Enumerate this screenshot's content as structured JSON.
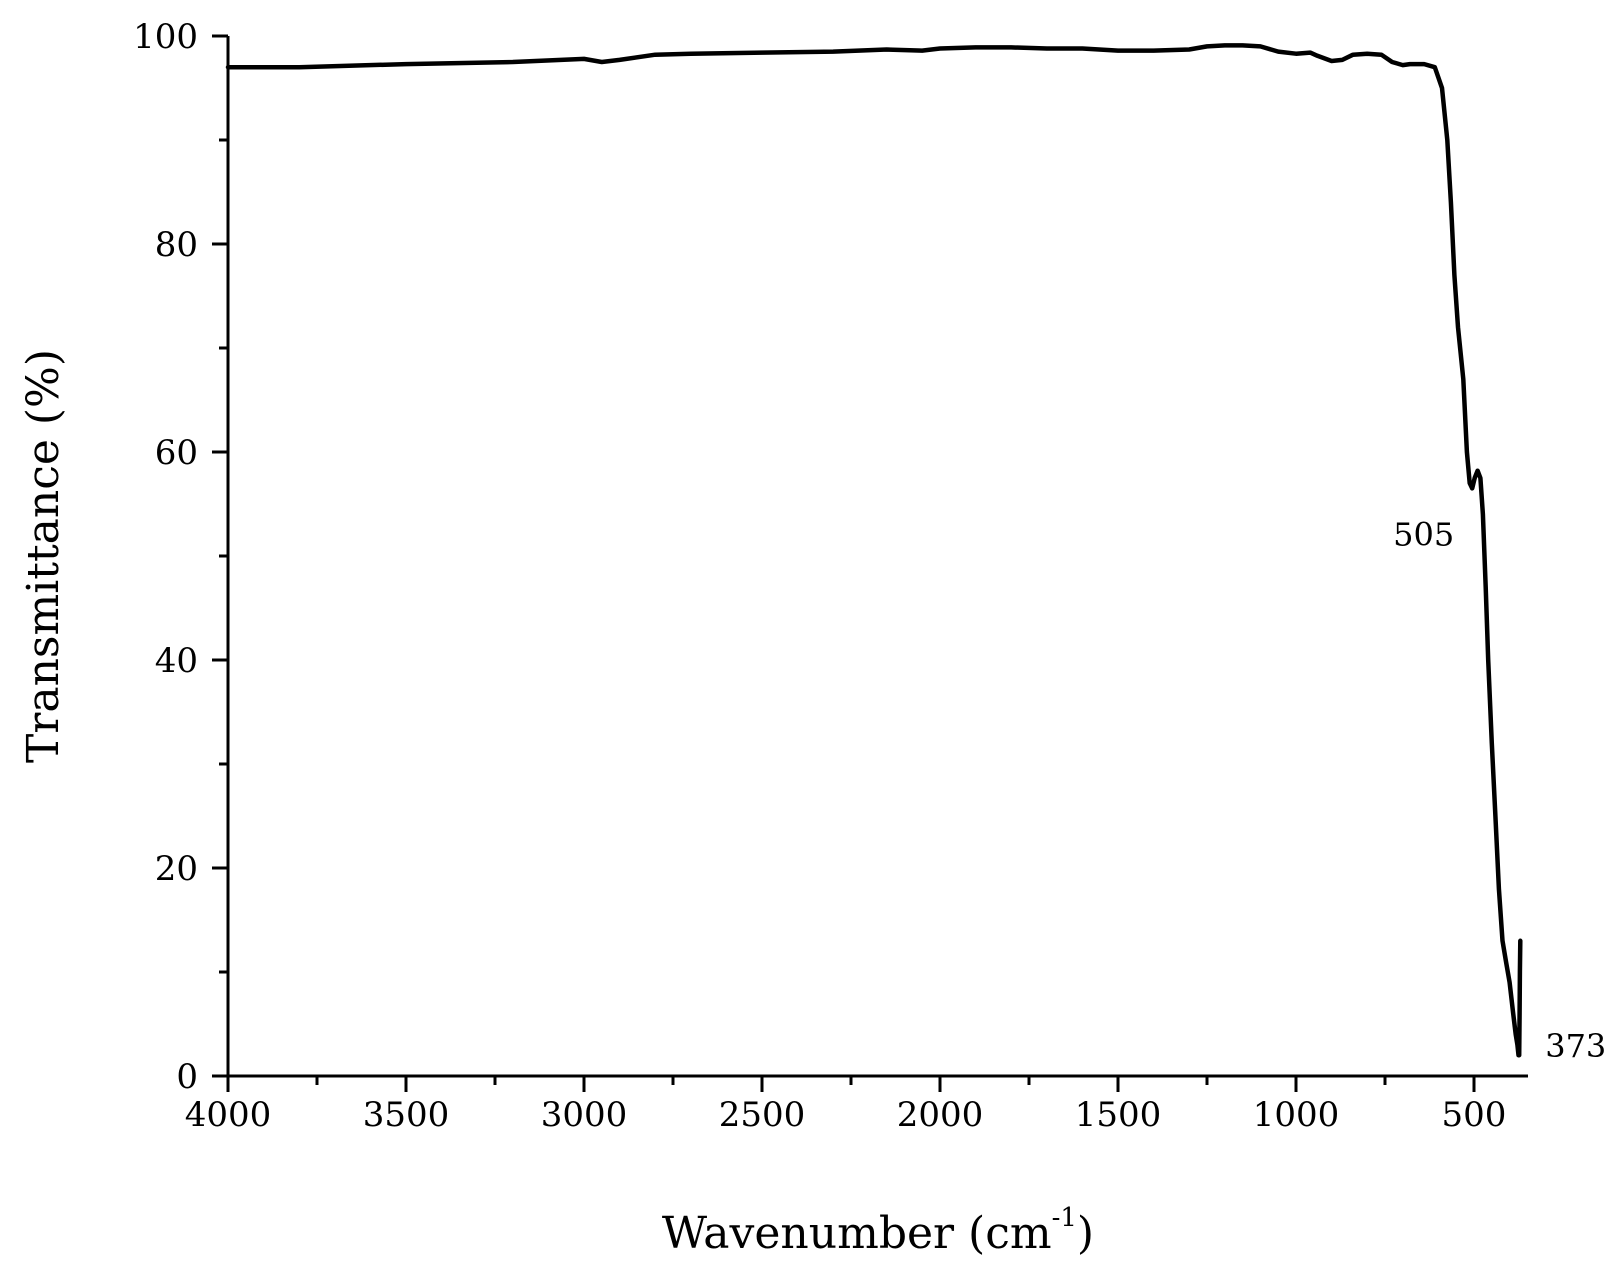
{
  "chart_data": {
    "type": "line",
    "title": "",
    "xlabel_main": "Wavenumber (cm",
    "xlabel_sup": "-1",
    "xlabel_close": ")",
    "ylabel": "Transmittance (%)",
    "xlim": [
      4000,
      350
    ],
    "ylim": [
      0,
      100
    ],
    "x_ticks": [
      4000,
      3500,
      3000,
      2500,
      2000,
      1500,
      1000,
      500
    ],
    "x_tick_labels": [
      "4000",
      "3500",
      "3000",
      "2500",
      "2000",
      "1500",
      "1000",
      "500"
    ],
    "x_minor_ticks": [
      3750,
      3250,
      2750,
      2250,
      1750,
      1250,
      750
    ],
    "y_ticks": [
      0,
      20,
      40,
      60,
      80,
      100
    ],
    "y_tick_labels": [
      "0",
      "20",
      "40",
      "60",
      "80",
      "100"
    ],
    "y_minor_ticks": [
      10,
      30,
      50,
      70,
      90
    ],
    "grid": false,
    "legend": "none",
    "line_color": "#000000",
    "annotations": [
      {
        "text": "505",
        "x": 505,
        "y": 56
      },
      {
        "text": "373",
        "x": 373,
        "y": 3
      }
    ],
    "series": [
      {
        "x": [
          4000,
          3800,
          3500,
          3200,
          3000,
          2950,
          2900,
          2800,
          2700,
          2500,
          2300,
          2150,
          2050,
          2000,
          1900,
          1800,
          1700,
          1600,
          1500,
          1400,
          1300,
          1250,
          1200,
          1150,
          1100,
          1050,
          1000,
          960,
          940,
          900,
          870,
          840,
          800,
          760,
          730,
          700,
          680,
          640,
          610,
          590,
          575,
          565,
          555,
          545,
          530,
          520,
          512,
          505,
          498,
          490,
          482,
          475,
          467,
          460,
          450,
          440,
          430,
          420,
          410,
          400,
          390,
          383,
          378,
          375,
          373,
          372,
          371,
          370
        ],
        "y": [
          97,
          97,
          97.3,
          97.5,
          97.8,
          97.5,
          97.7,
          98.2,
          98.3,
          98.4,
          98.5,
          98.7,
          98.6,
          98.8,
          98.9,
          98.9,
          98.8,
          98.8,
          98.6,
          98.6,
          98.7,
          99,
          99.1,
          99.1,
          99,
          98.5,
          98.3,
          98.4,
          98.1,
          97.6,
          97.7,
          98.2,
          98.3,
          98.2,
          97.5,
          97.2,
          97.3,
          97.3,
          97,
          95,
          90,
          84,
          77,
          72,
          67,
          60,
          57,
          56.5,
          57.5,
          58.2,
          57.5,
          54,
          47,
          40,
          32,
          25,
          18,
          13,
          11,
          9,
          6,
          4,
          3,
          2,
          2,
          6,
          10,
          13
        ]
      }
    ]
  }
}
